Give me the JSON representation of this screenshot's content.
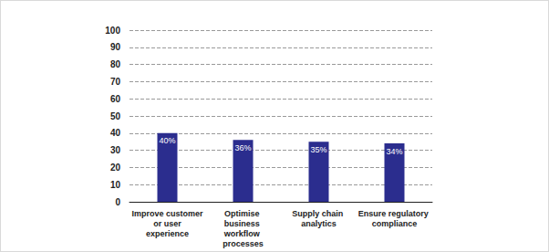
{
  "chart_data": {
    "type": "bar",
    "categories": [
      "Improve customer or user experience",
      "Optimise business workflow processes",
      "Supply chain analytics",
      "Ensure regulatory compliance"
    ],
    "values": [
      40,
      36,
      35,
      34
    ],
    "value_labels": [
      "40%",
      "36%",
      "35%",
      "34%"
    ],
    "data_labels": true,
    "color": "#2b2d8e",
    "ylim": [
      0,
      100
    ],
    "yticks": [
      0,
      10,
      20,
      30,
      40,
      50,
      60,
      70,
      80,
      90,
      100
    ],
    "grid": true
  }
}
